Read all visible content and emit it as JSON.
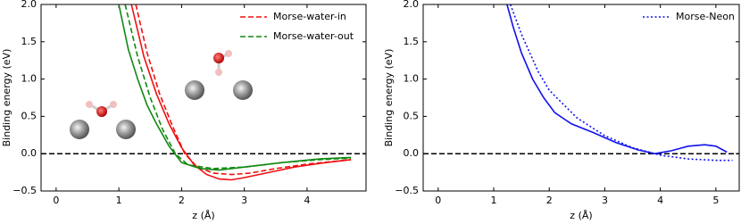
{
  "chart_data": [
    {
      "type": "line",
      "xlabel": "z (Å)",
      "ylabel": "Binding energy (eV)",
      "xlim": [
        -0.24,
        4.94
      ],
      "ylim": [
        -0.5,
        2.0
      ],
      "xticks": [
        0,
        1,
        2,
        3,
        4
      ],
      "yticks": [
        {
          "value": -0.5,
          "label": "−0.5"
        },
        {
          "value": 0,
          "label": "0.0"
        },
        0.5,
        {
          "value": 1,
          "label": "1.0"
        },
        1.5,
        {
          "value": 2,
          "label": "2.0"
        }
      ],
      "hline": 0,
      "legend": "upper right",
      "series": [
        {
          "color": "#ee1111",
          "dash": "solid",
          "x": [
            1.2,
            1.4,
            1.6,
            1.8,
            2.0,
            2.2,
            2.4,
            2.6,
            2.8,
            3.0,
            3.4,
            3.8,
            4.2,
            4.7
          ],
          "values": [
            2.0,
            1.3,
            0.8,
            0.4,
            0.08,
            -0.15,
            -0.28,
            -0.34,
            -0.35,
            -0.32,
            -0.25,
            -0.18,
            -0.13,
            -0.08
          ]
        },
        {
          "name": "Morse-water-in",
          "color": "#ee1111",
          "dash": "dashed",
          "x": [
            1.27,
            1.45,
            1.65,
            1.85,
            2.05,
            2.25,
            2.5,
            2.8,
            3.1,
            3.5,
            4.0,
            4.7
          ],
          "values": [
            2.0,
            1.35,
            0.8,
            0.38,
            0.0,
            -0.18,
            -0.26,
            -0.28,
            -0.26,
            -0.2,
            -0.14,
            -0.08
          ]
        },
        {
          "color": "#118811",
          "dash": "solid",
          "x": [
            1.0,
            1.15,
            1.3,
            1.45,
            1.6,
            1.8,
            2.0,
            2.3,
            2.6,
            3.0,
            3.6,
            4.2,
            4.7
          ],
          "values": [
            2.0,
            1.4,
            1.0,
            0.65,
            0.4,
            0.1,
            -0.12,
            -0.2,
            -0.22,
            -0.18,
            -0.12,
            -0.07,
            -0.05
          ]
        },
        {
          "name": "Morse-water-out",
          "color": "#118811",
          "dash": "dashed",
          "x": [
            1.1,
            1.3,
            1.5,
            1.7,
            1.9,
            2.1,
            2.5,
            3.0,
            3.6,
            4.2,
            4.7
          ],
          "values": [
            2.0,
            1.3,
            0.75,
            0.32,
            0.0,
            -0.15,
            -0.2,
            -0.18,
            -0.12,
            -0.08,
            -0.06
          ]
        }
      ]
    },
    {
      "type": "line",
      "xlabel": "z (Å)",
      "ylabel": "Binding energy (eV)",
      "xlim": [
        -0.27,
        5.42
      ],
      "ylim": [
        -0.5,
        2.0
      ],
      "xticks": [
        0,
        1,
        2,
        3,
        4,
        5
      ],
      "yticks": [
        {
          "value": -0.5,
          "label": "−0.5"
        },
        {
          "value": 0,
          "label": "0.0"
        },
        0.5,
        {
          "value": 1,
          "label": "1.0"
        },
        1.5,
        {
          "value": 2,
          "label": "2.0"
        }
      ],
      "hline": 0,
      "legend": "upper right",
      "series": [
        {
          "color": "#1111ee",
          "dash": "solid",
          "x": [
            1.24,
            1.35,
            1.5,
            1.7,
            1.9,
            2.1,
            2.4,
            2.8,
            3.2,
            3.6,
            3.9,
            4.2,
            4.5,
            4.8,
            5.0,
            5.2
          ],
          "values": [
            2.0,
            1.7,
            1.35,
            1.0,
            0.75,
            0.55,
            0.4,
            0.28,
            0.15,
            0.05,
            0.0,
            0.04,
            0.1,
            0.12,
            0.1,
            0.02
          ]
        },
        {
          "name": "Morse-Neon",
          "color": "#1111ee",
          "dash": "dotted",
          "x": [
            1.3,
            1.5,
            1.8,
            2.0,
            2.5,
            3.0,
            3.5,
            4.0,
            4.5,
            5.0,
            5.3
          ],
          "values": [
            2.0,
            1.6,
            1.1,
            0.85,
            0.48,
            0.24,
            0.08,
            -0.02,
            -0.07,
            -0.09,
            -0.09
          ]
        }
      ]
    }
  ]
}
